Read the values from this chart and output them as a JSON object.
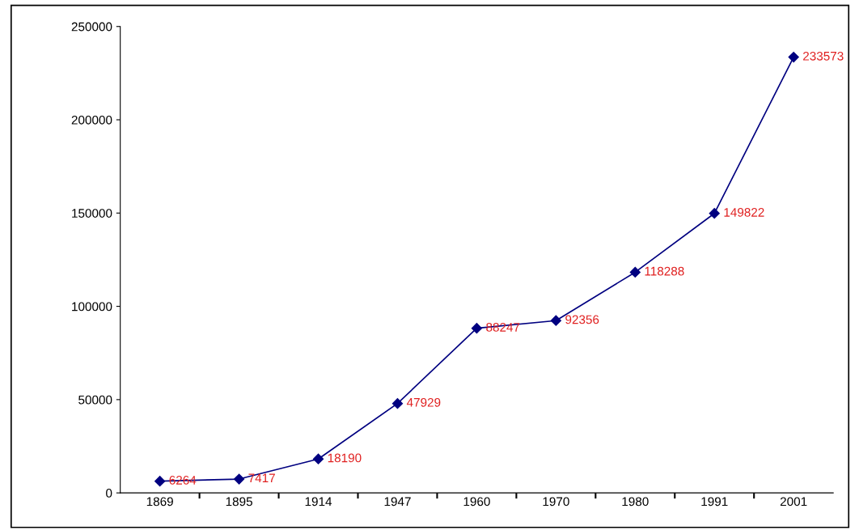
{
  "chart_data": {
    "type": "line",
    "categories": [
      "1869",
      "1895",
      "1914",
      "1947",
      "1960",
      "1970",
      "1980",
      "1991",
      "2001"
    ],
    "series": [
      {
        "color": "#000080",
        "values": [
          6264,
          7417,
          18190,
          47929,
          88247,
          92356,
          118288,
          149822,
          233573
        ]
      }
    ],
    "ylim": [
      0,
      250000
    ],
    "yticks": [
      0,
      50000,
      100000,
      150000,
      200000,
      250000
    ],
    "grid": false,
    "legend": false,
    "marker": "diamond",
    "line_style": "solid",
    "data_labels": true
  }
}
